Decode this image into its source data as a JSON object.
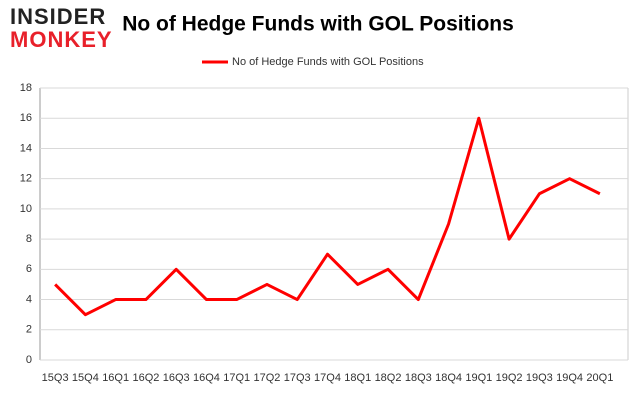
{
  "logo": [
    "INSIDER",
    "MONKEY"
  ],
  "chart_data": {
    "type": "line",
    "title": "No of Hedge Funds with GOL Positions",
    "categories": [
      "15Q3",
      "15Q4",
      "16Q1",
      "16Q2",
      "16Q3",
      "16Q4",
      "17Q1",
      "17Q2",
      "17Q3",
      "17Q4",
      "18Q1",
      "18Q2",
      "18Q3",
      "18Q4",
      "19Q1",
      "19Q2",
      "19Q3",
      "19Q4",
      "20Q1"
    ],
    "series": [
      {
        "name": "No of Hedge Funds with GOL Positions",
        "color": "#ff0000",
        "values": [
          5,
          3,
          4,
          4,
          6,
          4,
          4,
          5,
          4,
          7,
          5,
          6,
          4,
          9,
          16,
          8,
          11,
          12,
          11
        ]
      }
    ],
    "ylim": [
      0,
      18
    ],
    "yticks": [
      0,
      2,
      4,
      6,
      8,
      10,
      12,
      14,
      16,
      18
    ],
    "grid": true,
    "legend": "top"
  }
}
